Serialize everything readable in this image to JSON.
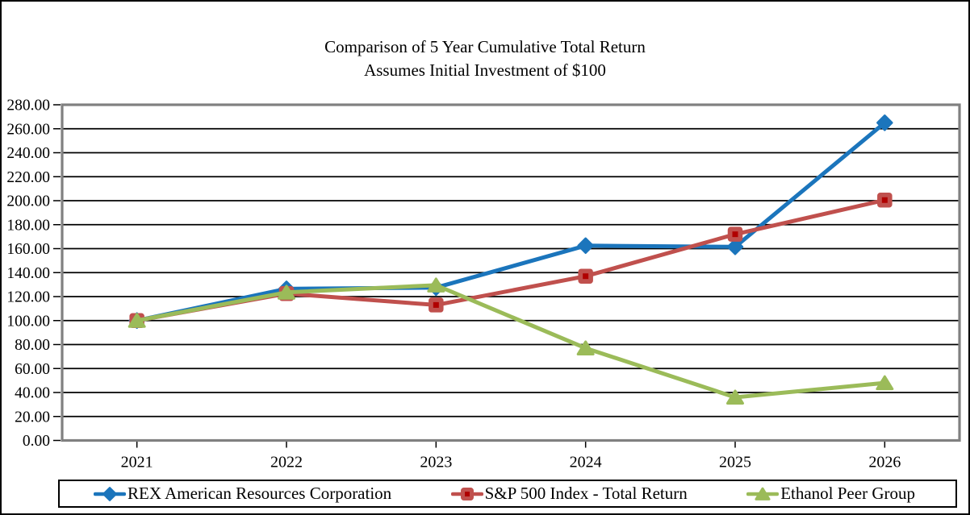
{
  "title": {
    "line1": "Comparison of 5 Year Cumulative Total Return",
    "line2": "Assumes Initial Investment of $100"
  },
  "chart_data": {
    "type": "line",
    "categories": [
      "2021",
      "2022",
      "2023",
      "2024",
      "2025",
      "2026"
    ],
    "series": [
      {
        "name": "REX American Resources Corporation",
        "marker": "diamond",
        "color": "#1B75BC",
        "values": [
          100.0,
          126.5,
          127.5,
          162.5,
          161.5,
          265.0
        ]
      },
      {
        "name": "S&P 500 Index - Total Return",
        "marker": "square",
        "color": "#C0504D",
        "marker_center_color": "#B00000",
        "values": [
          100.0,
          122.5,
          113.0,
          137.0,
          172.0,
          200.5
        ]
      },
      {
        "name": "Ethanol Peer Group",
        "marker": "triangle",
        "color": "#9BBB59",
        "values": [
          100.0,
          123.5,
          129.5,
          77.0,
          36.0,
          48.0
        ]
      }
    ],
    "xlabel": "",
    "ylabel": "",
    "ylim": [
      0,
      280
    ],
    "ytick_step": 20,
    "ytick_labels": [
      "0.00",
      "20.00",
      "40.00",
      "60.00",
      "80.00",
      "100.00",
      "120.00",
      "140.00",
      "160.00",
      "180.00",
      "200.00",
      "220.00",
      "240.00",
      "260.00",
      "280.00"
    ],
    "grid": "horizontal",
    "gridline_color": "#000000",
    "plot_border_color": "#808080",
    "axis_text_color": "#000000",
    "legend_position": "bottom"
  }
}
